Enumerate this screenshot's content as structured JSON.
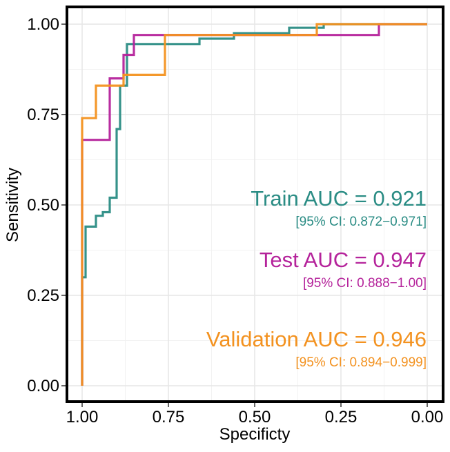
{
  "chart_data": {
    "type": "line",
    "xlabel": "Specificty",
    "ylabel": "Sensitivity",
    "xlim": [
      1.0,
      0.0
    ],
    "ylim": [
      0.0,
      1.0
    ],
    "x_reversed": true,
    "grid": true,
    "x_ticks": [
      1.0,
      0.75,
      0.5,
      0.25,
      0.0
    ],
    "x_tick_labels": [
      "1.00",
      "0.75",
      "0.50",
      "0.25",
      "0.00"
    ],
    "y_ticks": [
      0.0,
      0.25,
      0.5,
      0.75,
      1.0
    ],
    "y_tick_labels": [
      "0.00",
      "0.25",
      "0.50",
      "0.75",
      "1.00"
    ],
    "series": [
      {
        "name": "Train",
        "color": "#2a8c84",
        "auc_label": "Train AUC = 0.921",
        "ci_label": "[95% CI: 0.872−0.971]",
        "x": [
          1.0,
          1.0,
          0.99,
          0.99,
          0.96,
          0.96,
          0.94,
          0.94,
          0.92,
          0.92,
          0.9,
          0.9,
          0.89,
          0.89,
          0.87,
          0.87,
          0.84,
          0.82,
          0.75,
          0.66,
          0.66,
          0.56,
          0.56,
          0.4,
          0.4,
          0.3,
          0.3,
          0.0
        ],
        "y": [
          0.0,
          0.3,
          0.3,
          0.44,
          0.44,
          0.47,
          0.47,
          0.48,
          0.48,
          0.52,
          0.52,
          0.71,
          0.71,
          0.83,
          0.83,
          0.945,
          0.945,
          0.945,
          0.945,
          0.945,
          0.96,
          0.96,
          0.975,
          0.975,
          0.99,
          0.99,
          1.0,
          1.0
        ]
      },
      {
        "name": "Test",
        "color": "#b5239b",
        "auc_label": "Test AUC = 0.947",
        "ci_label": "[95% CI: 0.888−1.00]",
        "x": [
          1.0,
          1.0,
          0.92,
          0.92,
          0.88,
          0.88,
          0.85,
          0.85,
          0.8,
          0.75,
          0.62,
          0.5,
          0.38,
          0.3,
          0.14,
          0.14,
          0.0
        ],
        "y": [
          0.0,
          0.68,
          0.68,
          0.85,
          0.85,
          0.915,
          0.915,
          0.97,
          0.97,
          0.97,
          0.97,
          0.97,
          0.97,
          0.97,
          0.97,
          1.0,
          1.0
        ]
      },
      {
        "name": "Validation",
        "color": "#f39220",
        "auc_label": "Validation AUC = 0.946",
        "ci_label": "[95% CI: 0.894−0.999]",
        "x": [
          1.0,
          1.0,
          0.96,
          0.96,
          0.88,
          0.88,
          0.76,
          0.76,
          0.32,
          0.32,
          0.0
        ],
        "y": [
          0.0,
          0.74,
          0.74,
          0.83,
          0.83,
          0.86,
          0.86,
          0.97,
          0.97,
          1.0,
          1.0
        ]
      }
    ]
  }
}
